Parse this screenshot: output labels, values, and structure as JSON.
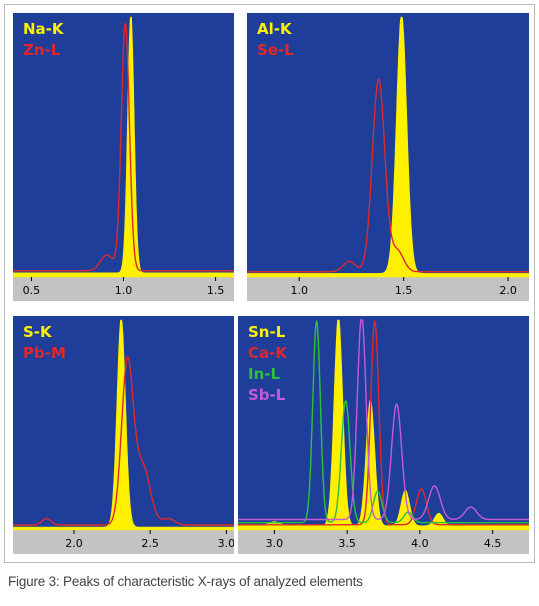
{
  "caption": "Figure 3: Peaks of characteristic X-rays of analyzed elements",
  "colors": {
    "plot_bg": "#1E3E99",
    "axis_strip": "#C3C3C3",
    "yellow": "#FFF000",
    "red": "#E0282A",
    "green": "#2BC23A",
    "magenta": "#C45BD6"
  },
  "chart_data": [
    {
      "type": "area",
      "xlim": [
        0.4,
        1.6
      ],
      "ticks": [
        0.5,
        1.0,
        1.5
      ],
      "tick_labels": [
        "0.5",
        "1.0",
        "1.5"
      ],
      "series": [
        {
          "name": "Na-K",
          "color": "yellow",
          "fill": true,
          "baseline": 0.016,
          "peaks": [
            {
              "center": 1.04,
              "width": 0.018,
              "height": 1.0
            }
          ]
        },
        {
          "name": "Zn-L",
          "color": "red",
          "fill": false,
          "baseline": 0.024,
          "peaks": [
            {
              "center": 1.01,
              "width": 0.022,
              "height": 0.95
            },
            {
              "center": 0.91,
              "width": 0.035,
              "height": 0.06
            }
          ]
        }
      ]
    },
    {
      "type": "area",
      "xlim": [
        0.75,
        2.1
      ],
      "ticks": [
        1.0,
        1.5,
        2.0
      ],
      "tick_labels": [
        "1.0",
        "1.5",
        "2.0"
      ],
      "series": [
        {
          "name": "Al-K",
          "color": "yellow",
          "fill": true,
          "baseline": 0.014,
          "peaks": [
            {
              "center": 1.49,
              "width": 0.025,
              "height": 1.0
            }
          ]
        },
        {
          "name": "Se-L",
          "color": "red",
          "fill": false,
          "baseline": 0.02,
          "peaks": [
            {
              "center": 1.38,
              "width": 0.03,
              "height": 0.74
            },
            {
              "center": 1.24,
              "width": 0.03,
              "height": 0.04
            },
            {
              "center": 1.47,
              "width": 0.03,
              "height": 0.08
            }
          ]
        }
      ]
    },
    {
      "type": "area",
      "xlim": [
        1.6,
        3.05
      ],
      "ticks": [
        2.0,
        2.5,
        3.0
      ],
      "tick_labels": [
        "2.0",
        "2.5",
        "3.0"
      ],
      "series": [
        {
          "name": "S-K",
          "color": "yellow",
          "fill": true,
          "baseline": 0.014,
          "peaks": [
            {
              "center": 2.31,
              "width": 0.028,
              "height": 1.0
            }
          ]
        },
        {
          "name": "Pb-M",
          "color": "red",
          "fill": false,
          "baseline": 0.024,
          "peaks": [
            {
              "center": 2.35,
              "width": 0.038,
              "height": 0.76
            },
            {
              "center": 2.45,
              "width": 0.05,
              "height": 0.28
            },
            {
              "center": 1.82,
              "width": 0.03,
              "height": 0.03
            },
            {
              "center": 2.62,
              "width": 0.04,
              "height": 0.03
            }
          ]
        }
      ]
    },
    {
      "type": "area",
      "xlim": [
        2.75,
        4.75
      ],
      "ticks": [
        3.0,
        3.5,
        4.0,
        4.5
      ],
      "tick_labels": [
        "3.0",
        "3.5",
        "4.0",
        "4.5"
      ],
      "series": [
        {
          "name": "Sn-L",
          "color": "yellow",
          "fill": true,
          "baseline": 0.02,
          "peaks": [
            {
              "center": 3.44,
              "width": 0.03,
              "height": 1.0
            },
            {
              "center": 3.66,
              "width": 0.03,
              "height": 0.6
            },
            {
              "center": 3.9,
              "width": 0.03,
              "height": 0.17
            },
            {
              "center": 4.13,
              "width": 0.03,
              "height": 0.06
            },
            {
              "center": 3.0,
              "width": 0.04,
              "height": 0.02
            }
          ]
        },
        {
          "name": "Ca-K",
          "color": "red",
          "fill": false,
          "baseline": 0.025,
          "peaks": [
            {
              "center": 3.69,
              "width": 0.028,
              "height": 0.97
            },
            {
              "center": 4.01,
              "width": 0.035,
              "height": 0.17
            }
          ]
        },
        {
          "name": "In-L",
          "color": "green",
          "fill": false,
          "baseline": 0.035,
          "peaks": [
            {
              "center": 3.29,
              "width": 0.026,
              "height": 0.96
            },
            {
              "center": 3.49,
              "width": 0.03,
              "height": 0.58
            },
            {
              "center": 3.71,
              "width": 0.03,
              "height": 0.15
            },
            {
              "center": 3.92,
              "width": 0.03,
              "height": 0.05
            }
          ]
        },
        {
          "name": "Sb-L",
          "color": "magenta",
          "fill": false,
          "baseline": 0.05,
          "peaks": [
            {
              "center": 3.6,
              "width": 0.03,
              "height": 0.97
            },
            {
              "center": 3.84,
              "width": 0.035,
              "height": 0.55
            },
            {
              "center": 4.1,
              "width": 0.04,
              "height": 0.16
            },
            {
              "center": 4.35,
              "width": 0.04,
              "height": 0.06
            }
          ]
        }
      ]
    }
  ]
}
